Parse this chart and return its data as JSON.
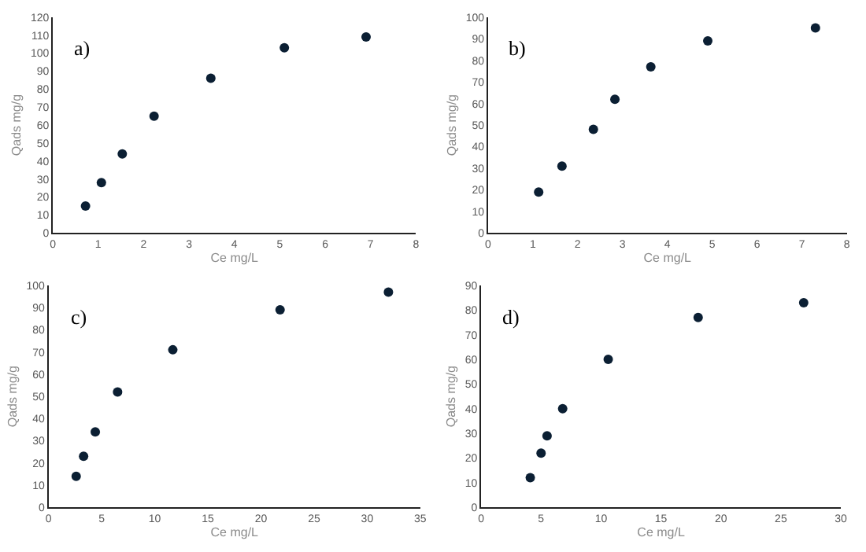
{
  "chart_data": [
    {
      "type": "scatter",
      "xlabel": "Ce mg/L",
      "ylabel": "Qads mg/g",
      "annotations": [
        "a)"
      ],
      "marker": "circle",
      "xlim": [
        0,
        8
      ],
      "xticks": [
        0,
        1,
        2,
        3,
        4,
        5,
        6,
        7,
        8
      ],
      "ylim": [
        0,
        120
      ],
      "yticks": [
        0,
        10,
        20,
        30,
        40,
        50,
        60,
        70,
        80,
        90,
        100,
        110,
        120
      ],
      "series": [
        {
          "color": "#0b1f33",
          "x": [
            0.72,
            1.07,
            1.53,
            2.23,
            3.48,
            5.1,
            6.9
          ],
          "values": [
            15,
            28,
            44,
            65,
            86,
            103,
            109
          ]
        }
      ]
    },
    {
      "type": "scatter",
      "xlabel": "Ce mg/L",
      "ylabel": "Qads mg/g",
      "annotations": [
        "b)"
      ],
      "marker": "circle",
      "xlim": [
        0,
        8
      ],
      "xticks": [
        0,
        1,
        2,
        3,
        4,
        5,
        6,
        7,
        8
      ],
      "ylim": [
        0,
        100
      ],
      "yticks": [
        0,
        10,
        20,
        30,
        40,
        50,
        60,
        70,
        80,
        90,
        100
      ],
      "series": [
        {
          "color": "#0b1f33",
          "x": [
            1.13,
            1.65,
            2.35,
            2.83,
            3.63,
            4.9,
            7.3
          ],
          "values": [
            19,
            31,
            48,
            62,
            77,
            89,
            95
          ]
        }
      ]
    },
    {
      "type": "scatter",
      "xlabel": "Ce mg/L",
      "ylabel": "Qads mg/g",
      "annotations": [
        "c)"
      ],
      "marker": "circle",
      "xlim": [
        0,
        35
      ],
      "xticks": [
        0,
        5,
        10,
        15,
        20,
        25,
        30,
        35
      ],
      "ylim": [
        0,
        100
      ],
      "yticks": [
        0,
        10,
        20,
        30,
        40,
        50,
        60,
        70,
        80,
        90,
        100
      ],
      "series": [
        {
          "color": "#0b1f33",
          "x": [
            2.6,
            3.3,
            4.4,
            6.5,
            11.7,
            21.8,
            32
          ],
          "values": [
            14,
            23,
            34,
            52,
            71,
            89,
            97
          ]
        }
      ]
    },
    {
      "type": "scatter",
      "xlabel": "Ce mg/L",
      "ylabel": "Qads mg/g",
      "annotations": [
        "d)"
      ],
      "marker": "circle",
      "xlim": [
        0,
        30
      ],
      "xticks": [
        0,
        5,
        10,
        15,
        20,
        25,
        30
      ],
      "ylim": [
        0,
        90
      ],
      "yticks": [
        0,
        10,
        20,
        30,
        40,
        50,
        60,
        70,
        80,
        90
      ],
      "series": [
        {
          "color": "#0b1f33",
          "x": [
            4.1,
            5.0,
            5.5,
            6.8,
            10.6,
            18.1,
            26.9
          ],
          "values": [
            12,
            22,
            29,
            40,
            60,
            77,
            83
          ]
        }
      ]
    }
  ]
}
